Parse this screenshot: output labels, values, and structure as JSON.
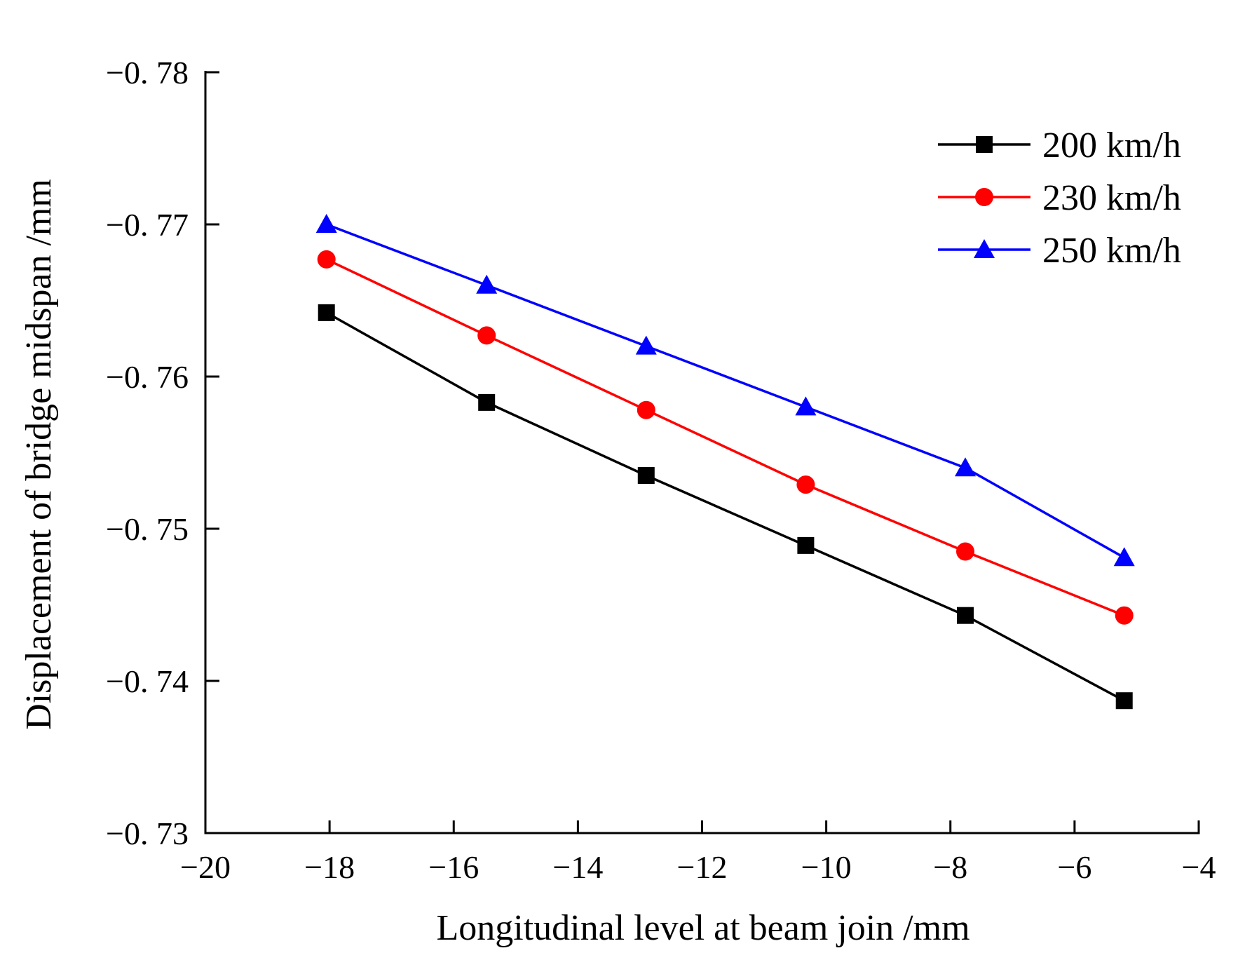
{
  "chart_data": {
    "type": "line",
    "title": "",
    "xlabel": "Longitudinal level at beam join /mm",
    "ylabel": "Displacement of bridge midspan /mm",
    "xlim": [
      -20,
      -4
    ],
    "ylim": [
      -0.73,
      -0.78
    ],
    "y_reversed": true,
    "xticks": [
      -20,
      -18,
      -16,
      -14,
      -12,
      -10,
      -8,
      -6,
      -4
    ],
    "yticks": [
      -0.73,
      -0.74,
      -0.75,
      -0.76,
      -0.77,
      -0.78
    ],
    "xtick_labels": [
      "−20",
      "−18",
      "−16",
      "−14",
      "−12",
      "−10",
      "−8",
      "−6",
      "−4"
    ],
    "ytick_labels": [
      "−0. 73",
      "−0. 74",
      "−0. 75",
      "−0. 76",
      "−0. 77",
      "−0. 78"
    ],
    "x": [
      -18.05,
      -15.47,
      -12.9,
      -10.33,
      -7.76,
      -5.2
    ],
    "legend_position": "top-right",
    "grid": false,
    "series": [
      {
        "name": "200 km/h",
        "color": "#000000",
        "marker": "square",
        "values": [
          -0.7642,
          -0.7583,
          -0.7535,
          -0.7489,
          -0.7443,
          -0.7387
        ]
      },
      {
        "name": "230 km/h",
        "color": "#ff0000",
        "marker": "circle",
        "values": [
          -0.7677,
          -0.7627,
          -0.7578,
          -0.7529,
          -0.7485,
          -0.7443
        ]
      },
      {
        "name": "250 km/h",
        "color": "#0000ff",
        "marker": "triangle",
        "values": [
          -0.77,
          -0.766,
          -0.762,
          -0.758,
          -0.754,
          -0.7481
        ]
      }
    ]
  }
}
